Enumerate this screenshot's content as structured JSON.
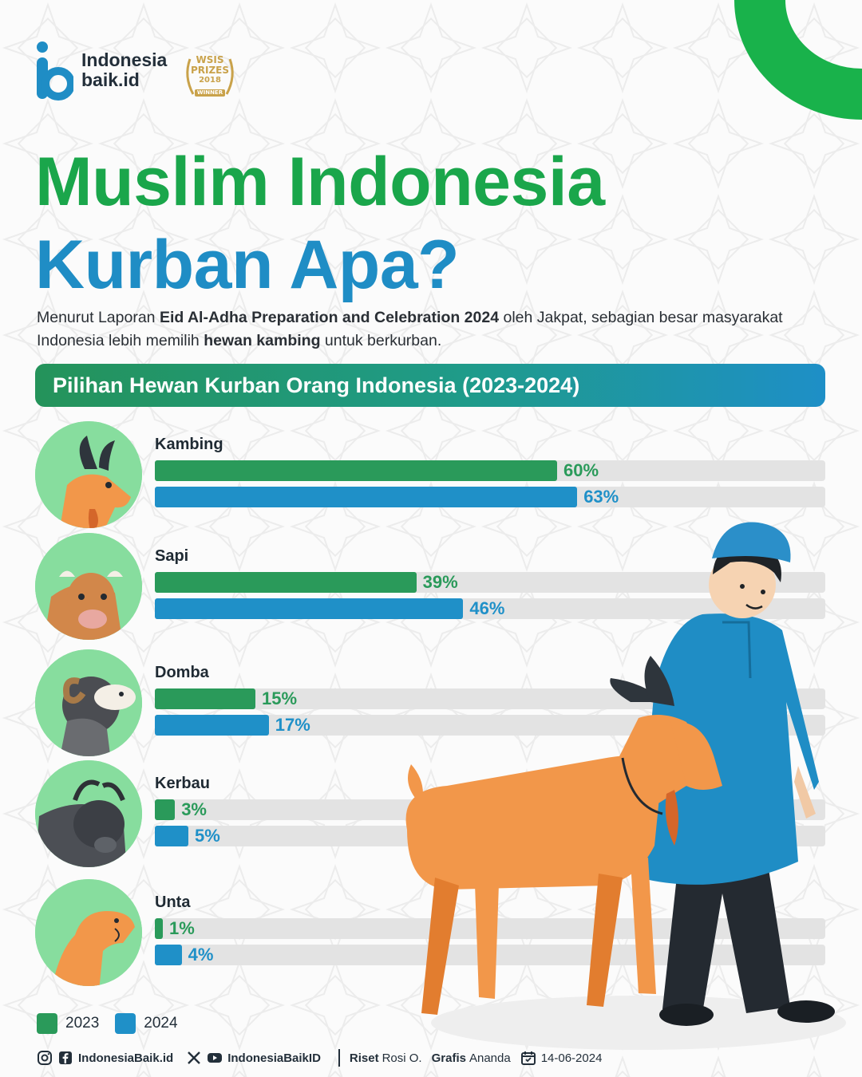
{
  "brand": {
    "name_line1": "Indonesia",
    "name_line2": "baik.id",
    "award_line1": "WSIS",
    "award_line2": "PRIZES",
    "award_line3": "2018",
    "award_line4": "WINNER",
    "primary_green": "#1aa64b",
    "primary_blue": "#1f8dc5"
  },
  "header": {
    "title_line1": "Muslim Indonesia",
    "title_line2": "Kurban Apa?"
  },
  "intro": {
    "p1": "Menurut Laporan ",
    "b1": "Eid Al-Adha Preparation and Celebration 2024",
    "p2": " oleh Jakpat, sebagian besar masyarakat Indonesia lebih memilih ",
    "b2": "hewan kambing",
    "p3": " untuk berkurban."
  },
  "chart_data": {
    "type": "bar",
    "orientation": "horizontal",
    "title": "Pilihan Hewan Kurban Orang Indonesia (2023-2024)",
    "categories": [
      "Kambing",
      "Sapi",
      "Domba",
      "Kerbau",
      "Unta"
    ],
    "series": [
      {
        "name": "2023",
        "color": "#2a9a5a",
        "values": [
          60,
          39,
          15,
          3,
          1
        ],
        "labels": [
          "60%",
          "39%",
          "15%",
          "3%",
          "1%"
        ]
      },
      {
        "name": "2024",
        "color": "#1f90c8",
        "values": [
          63,
          46,
          17,
          5,
          4
        ],
        "labels": [
          "63%",
          "46%",
          "17%",
          "5%",
          "4%"
        ]
      }
    ],
    "xlim": [
      0,
      100
    ],
    "unit": "%",
    "icons": [
      "goat-icon",
      "cow-icon",
      "sheep-icon",
      "buffalo-icon",
      "camel-icon"
    ],
    "legend_position": "bottom-left",
    "grid": false
  },
  "footer": {
    "social1": "IndonesiaBaik.id",
    "social2": "IndonesiaBaikID",
    "riset_label": "Riset",
    "riset_name": "Rosi O.",
    "grafis_label": "Grafis",
    "grafis_name": "Ananda",
    "date": "14-06-2024"
  }
}
